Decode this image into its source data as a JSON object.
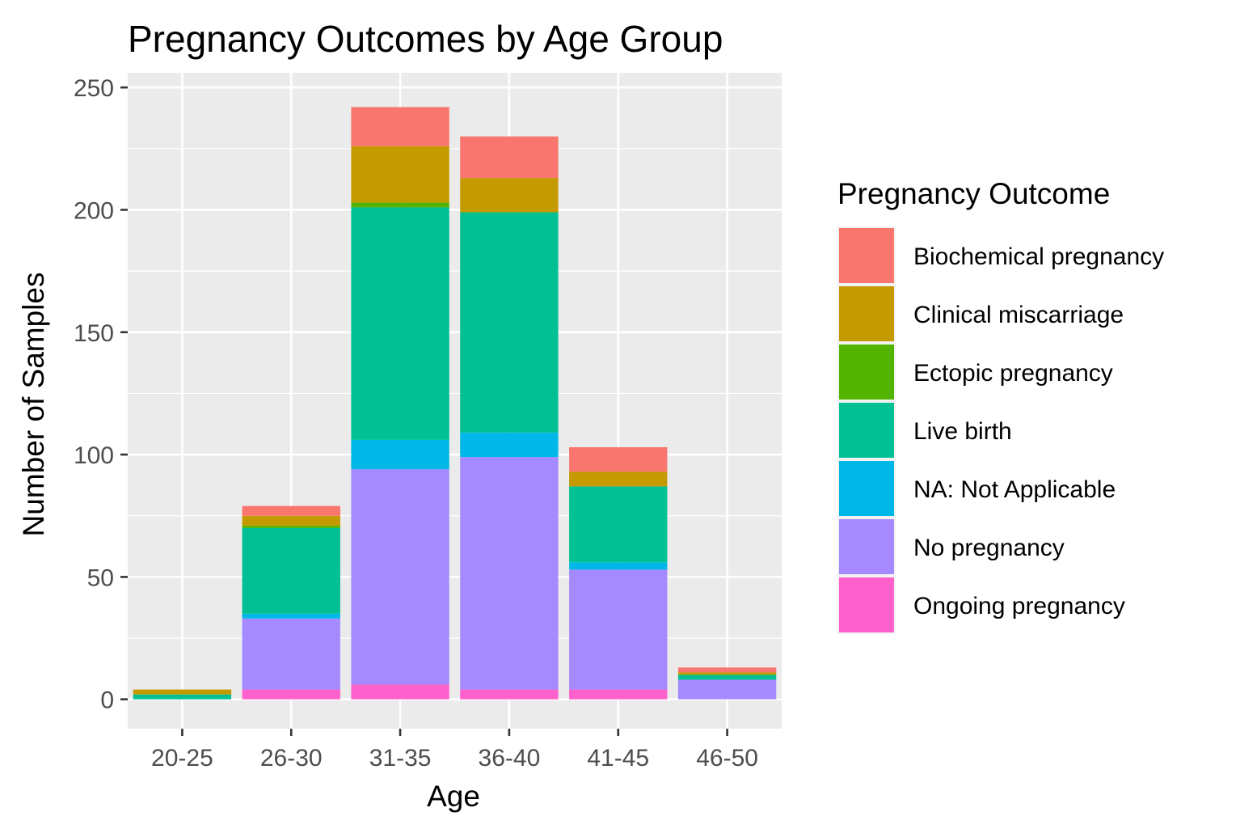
{
  "chart_data": {
    "type": "bar",
    "stacked": true,
    "title": "Pregnancy Outcomes by Age Group",
    "xlabel": "Age",
    "ylabel": "Number of Samples",
    "ylim": [
      -12,
      256
    ],
    "yticks": [
      0,
      50,
      100,
      150,
      200,
      250
    ],
    "grid": true,
    "legend_position": "right",
    "legend_title": "Pregnancy Outcome",
    "categories": [
      "20-25",
      "26-30",
      "31-35",
      "36-40",
      "41-45",
      "46-50"
    ],
    "series": [
      {
        "name": "Ongoing pregnancy",
        "color": "#FF61CC",
        "values": [
          0,
          4,
          6,
          4,
          4,
          0
        ]
      },
      {
        "name": "No pregnancy",
        "color": "#A58AFF",
        "values": [
          0,
          29,
          88,
          95,
          49,
          8
        ]
      },
      {
        "name": "NA: Not Applicable",
        "color": "#00B8E7",
        "values": [
          0,
          2,
          12,
          10,
          3,
          0
        ]
      },
      {
        "name": "Live birth",
        "color": "#00C094",
        "values": [
          2,
          35,
          95,
          90,
          31,
          2
        ]
      },
      {
        "name": "Ectopic pregnancy",
        "color": "#53B400",
        "values": [
          0,
          1,
          2,
          0,
          0,
          0
        ]
      },
      {
        "name": "Clinical miscarriage",
        "color": "#C49A00",
        "values": [
          2,
          4,
          23,
          14,
          6,
          1
        ]
      },
      {
        "name": "Biochemical pregnancy",
        "color": "#F8766D",
        "values": [
          0,
          4,
          16,
          17,
          10,
          2
        ]
      }
    ],
    "legend_order": [
      "Biochemical pregnancy",
      "Clinical miscarriage",
      "Ectopic pregnancy",
      "Live birth",
      "NA: Not Applicable",
      "No pregnancy",
      "Ongoing pregnancy"
    ],
    "colors": {
      "panel_background": "#EBEBEB",
      "grid": "#FFFFFF",
      "tick": "#333333"
    }
  }
}
